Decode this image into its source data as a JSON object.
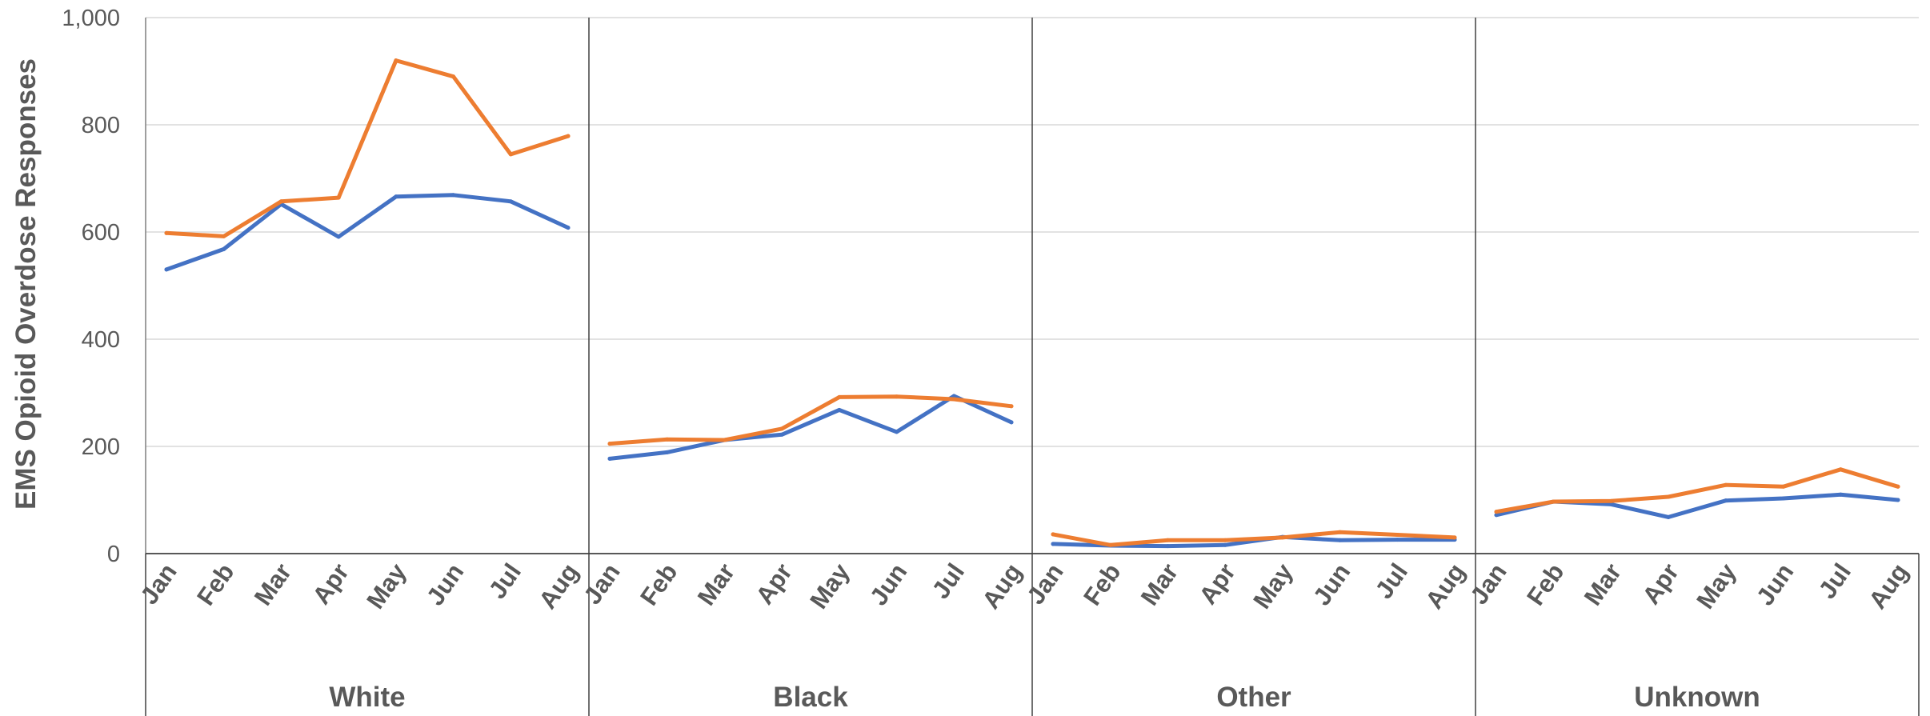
{
  "chart_data": {
    "type": "line",
    "title": "",
    "ylabel": "EMS Opioid Overdose Responses",
    "xlabel": "",
    "ylim": [
      0,
      1000
    ],
    "yticks": [
      0,
      200,
      400,
      600,
      800,
      1000
    ],
    "ytick_labels": [
      "0",
      "200",
      "400",
      "600",
      "800",
      "1,000"
    ],
    "grid": true,
    "legend": "none",
    "months": [
      "Jan",
      "Feb",
      "Mar",
      "Apr",
      "May",
      "Jun",
      "Jul",
      "Aug"
    ],
    "groups": [
      {
        "name": "White",
        "series": [
          {
            "color": "#4472C4",
            "values": [
              530,
              568,
              652,
              591,
              666,
              669,
              657,
              608
            ]
          },
          {
            "color": "#ED7D31",
            "values": [
              598,
              592,
              657,
              664,
              920,
              890,
              745,
              779
            ]
          }
        ]
      },
      {
        "name": "Black",
        "series": [
          {
            "color": "#4472C4",
            "values": [
              177,
              189,
              212,
              222,
              268,
              227,
              294,
              245
            ]
          },
          {
            "color": "#ED7D31",
            "values": [
              205,
              213,
              212,
              233,
              292,
              293,
              288,
              275
            ]
          }
        ]
      },
      {
        "name": "Other",
        "series": [
          {
            "color": "#4472C4",
            "values": [
              18,
              15,
              14,
              16,
              31,
              25,
              26,
              26
            ]
          },
          {
            "color": "#ED7D31",
            "values": [
              36,
              16,
              25,
              25,
              30,
              40,
              35,
              30
            ]
          }
        ]
      },
      {
        "name": "Unknown",
        "series": [
          {
            "color": "#4472C4",
            "values": [
              72,
              97,
              92,
              68,
              99,
              103,
              110,
              100
            ]
          },
          {
            "color": "#ED7D31",
            "values": [
              78,
              97,
              98,
              106,
              128,
              125,
              157,
              125
            ]
          }
        ]
      }
    ]
  }
}
